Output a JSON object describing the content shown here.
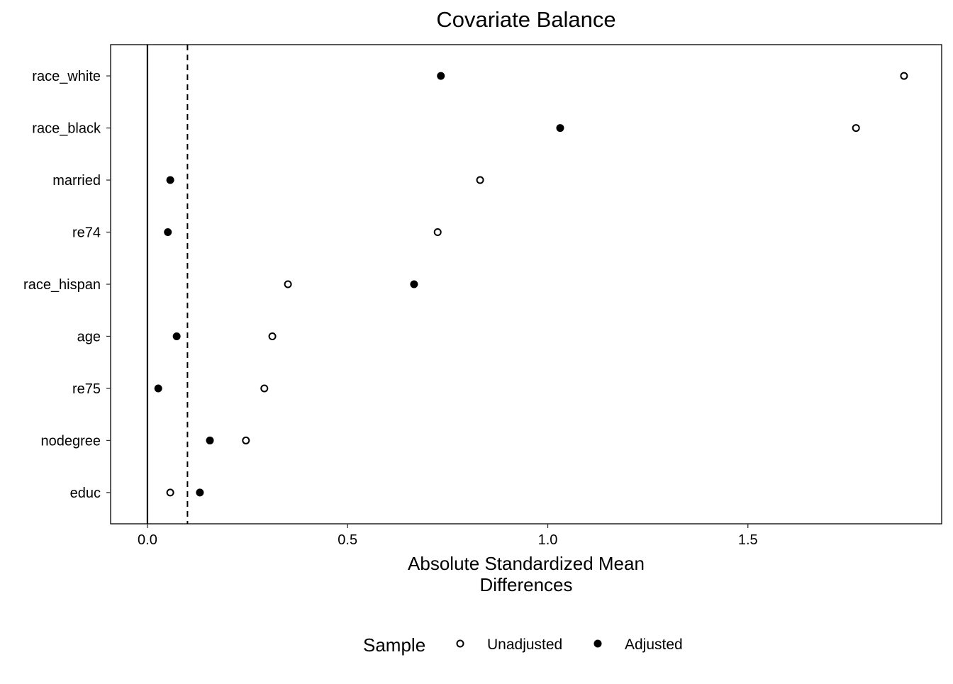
{
  "chart_data": {
    "type": "scatter",
    "title": "Covariate Balance",
    "xlabel": [
      "Absolute Standardized Mean",
      "Differences"
    ],
    "ylabel": "",
    "xlim": [
      -0.092,
      1.984
    ],
    "xticks": [
      0.0,
      0.5,
      1.0,
      1.5
    ],
    "xtick_labels": [
      "0.0",
      "0.5",
      "1.0",
      "1.5"
    ],
    "reference_lines": [
      {
        "value": 0,
        "style": "solid"
      },
      {
        "value": 0.1,
        "style": "dashed"
      }
    ],
    "grid": false,
    "categories": [
      "race_white",
      "race_black",
      "married",
      "re74",
      "race_hispan",
      "age",
      "re75",
      "nodegree",
      "educ"
    ],
    "series": [
      {
        "name": "Unadjusted",
        "marker": "open-circle",
        "values": [
          1.89,
          1.77,
          0.831,
          0.725,
          0.351,
          0.312,
          0.292,
          0.246,
          0.057
        ]
      },
      {
        "name": "Adjusted",
        "marker": "filled-circle",
        "values": [
          0.733,
          1.031,
          0.057,
          0.051,
          0.666,
          0.073,
          0.027,
          0.156,
          0.131
        ]
      }
    ],
    "legend": {
      "title": "Sample",
      "placement": "bottom",
      "entries": [
        "Unadjusted",
        "Adjusted"
      ]
    }
  }
}
